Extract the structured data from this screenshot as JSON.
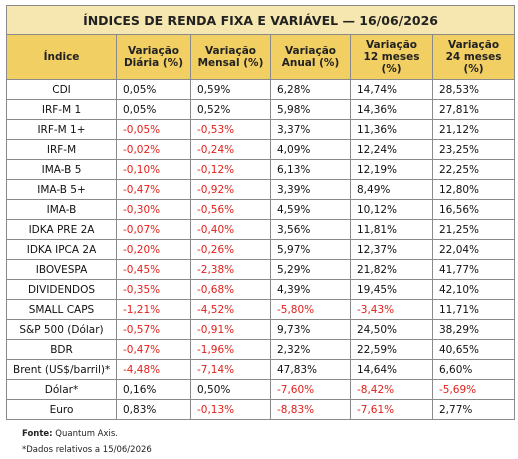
{
  "title": "ÍNDICES DE RENDA FIXA E VARIÁVEL — 16/06/2026",
  "table": {
    "header": [
      "Índice",
      "Variação Diária (%)",
      "Variação Mensal (%)",
      "Variação Anual (%)",
      "Variação 12 meses (%)",
      "Variação 24 meses (%)"
    ],
    "rows": [
      [
        "CDI",
        "0,05%",
        "0,59%",
        "6,28%",
        "14,74%",
        "28,53%"
      ],
      [
        "IRF-M 1",
        "0,05%",
        "0,52%",
        "5,98%",
        "14,36%",
        "27,81%"
      ],
      [
        "IRF-M 1+",
        "-0,05%",
        "-0,53%",
        "3,37%",
        "11,36%",
        "21,12%"
      ],
      [
        "IRF-M",
        "-0,02%",
        "-0,24%",
        "4,09%",
        "12,24%",
        "23,25%"
      ],
      [
        "IMA-B 5",
        "-0,10%",
        "-0,12%",
        "6,13%",
        "12,19%",
        "22,25%"
      ],
      [
        "IMA-B 5+",
        "-0,47%",
        "-0,92%",
        "3,39%",
        "8,49%",
        "12,80%"
      ],
      [
        "IMA-B",
        "-0,30%",
        "-0,56%",
        "4,59%",
        "10,12%",
        "16,56%"
      ],
      [
        "IDKA PRE 2A",
        "-0,07%",
        "-0,40%",
        "3,56%",
        "11,81%",
        "21,25%"
      ],
      [
        "IDKA IPCA 2A",
        "-0,20%",
        "-0,26%",
        "5,97%",
        "12,37%",
        "22,04%"
      ],
      [
        "IBOVESPA",
        "-0,45%",
        "-2,38%",
        "5,29%",
        "21,82%",
        "41,77%"
      ],
      [
        "DIVIDENDOS",
        "-0,35%",
        "-0,68%",
        "4,39%",
        "19,45%",
        "42,10%"
      ],
      [
        "SMALL CAPS",
        "-1,21%",
        "-4,52%",
        "-5,80%",
        "-3,43%",
        "11,71%"
      ],
      [
        "S&P 500 (Dólar)",
        "-0,57%",
        "-0,91%",
        "9,73%",
        "24,50%",
        "38,29%"
      ],
      [
        "BDR",
        "-0,47%",
        "-1,96%",
        "2,32%",
        "22,59%",
        "40,65%"
      ],
      [
        "Brent (US$/barril)*",
        "-4,48%",
        "-7,14%",
        "47,83%",
        "14,64%",
        "6,60%"
      ],
      [
        "Dólar*",
        "0,16%",
        "0,50%",
        "-7,60%",
        "-8,42%",
        "-5,69%"
      ],
      [
        "Euro",
        "0,83%",
        "-0,13%",
        "-8,83%",
        "-7,61%",
        "2,77%"
      ]
    ]
  },
  "footnotes": {
    "source_label": "Fonte:",
    "source": "Quantum Axis.",
    "note": "*Dados relativos a 15/06/2026"
  }
}
